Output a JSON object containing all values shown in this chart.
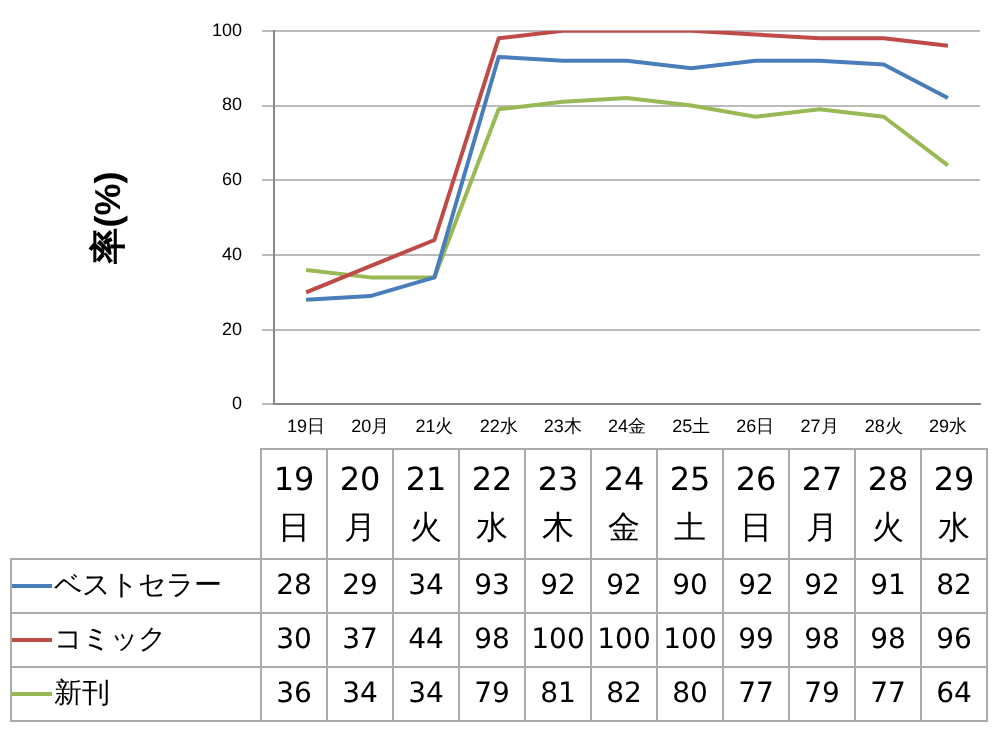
{
  "chart_data": {
    "type": "line",
    "ylabel": "率(%)",
    "categories": [
      "19日",
      "20月",
      "21火",
      "22水",
      "23木",
      "24金",
      "25土",
      "26日",
      "27月",
      "28火",
      "29水"
    ],
    "series": [
      {
        "name": "ベストセラー",
        "color": "#4a7ebb",
        "values": [
          28,
          29,
          34,
          93,
          92,
          92,
          90,
          92,
          92,
          91,
          82
        ]
      },
      {
        "name": "コミック",
        "color": "#be4b48",
        "values": [
          30,
          37,
          44,
          98,
          100,
          100,
          100,
          99,
          98,
          98,
          96
        ]
      },
      {
        "name": "新刊",
        "color": "#98b954",
        "values": [
          36,
          34,
          34,
          79,
          81,
          82,
          80,
          77,
          79,
          77,
          64
        ]
      }
    ],
    "ylim": [
      0,
      100
    ],
    "yticks": [
      0,
      20,
      40,
      60,
      80,
      100
    ],
    "grid": "y",
    "legend": "left",
    "marker": "none",
    "data_labels": true
  }
}
